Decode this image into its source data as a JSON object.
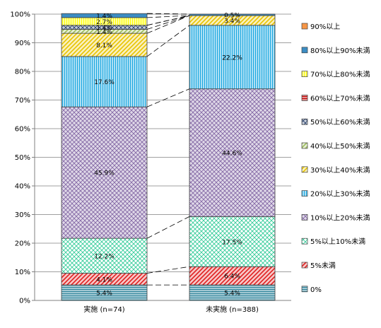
{
  "chart_data": {
    "type": "bar",
    "stacked": true,
    "percent": true,
    "categories": [
      "実施 (n=74)",
      "未実施 (n=388)"
    ],
    "ylim": [
      0,
      100
    ],
    "yticks": [
      "0%",
      "10%",
      "20%",
      "30%",
      "40%",
      "50%",
      "60%",
      "70%",
      "80%",
      "90%",
      "100%"
    ],
    "grid": true,
    "legend_position": "right",
    "series": [
      {
        "name": "0%",
        "color": "#31859C",
        "pattern": "hlines",
        "values": [
          5.4,
          5.4
        ],
        "labels": [
          "5.4%",
          "5.4%"
        ]
      },
      {
        "name": "5%未満",
        "color": "#E02020",
        "pattern": "diag",
        "values": [
          4.1,
          6.4
        ],
        "labels": [
          "4.1%",
          "6.4%"
        ]
      },
      {
        "name": "5%以上10%未満",
        "color": "#33CC99",
        "pattern": "cross",
        "values": [
          12.2,
          17.5
        ],
        "labels": [
          "12.2%",
          "17.5%"
        ]
      },
      {
        "name": "10%以上20%未満",
        "color": "#8064A2",
        "pattern": "dots",
        "values": [
          45.9,
          44.6
        ],
        "labels": [
          "45.9%",
          "44.6%"
        ]
      },
      {
        "name": "20%以上30%未満",
        "color": "#1AA7E0",
        "pattern": "vlines",
        "values": [
          17.6,
          22.2
        ],
        "labels": [
          "17.6%",
          "22.2%"
        ]
      },
      {
        "name": "30%以上40%未満",
        "color": "#E8C400",
        "pattern": "diag",
        "values": [
          8.1,
          3.4
        ],
        "labels": [
          "8.1%",
          "3.4%"
        ]
      },
      {
        "name": "40%以上50%未満",
        "color": "#9BBB59",
        "pattern": "diag",
        "values": [
          1.4,
          0
        ],
        "labels": [
          "1.4%",
          ""
        ]
      },
      {
        "name": "50%以上60%未満",
        "color": "#1F3864",
        "pattern": "dots",
        "values": [
          1.4,
          0
        ],
        "labels": [
          "1.4%",
          ""
        ]
      },
      {
        "name": "60%以上70%未満",
        "color": "#C00000",
        "pattern": "hlines",
        "values": [
          0,
          0
        ],
        "labels": [
          "",
          ""
        ]
      },
      {
        "name": "70%以上80%未満",
        "color": "#FFFF00",
        "pattern": "vlines",
        "values": [
          2.7,
          0
        ],
        "labels": [
          "2.7%",
          ""
        ]
      },
      {
        "name": "80%以上90%未満",
        "color": "#3C8DC4",
        "pattern": "solid",
        "values": [
          1.4,
          0.5
        ],
        "labels": [
          "1.4%",
          "0.5%"
        ]
      },
      {
        "name": "90%以上",
        "color": "#F79646",
        "pattern": "solid",
        "values": [
          0,
          0
        ],
        "labels": [
          "",
          ""
        ]
      }
    ]
  }
}
